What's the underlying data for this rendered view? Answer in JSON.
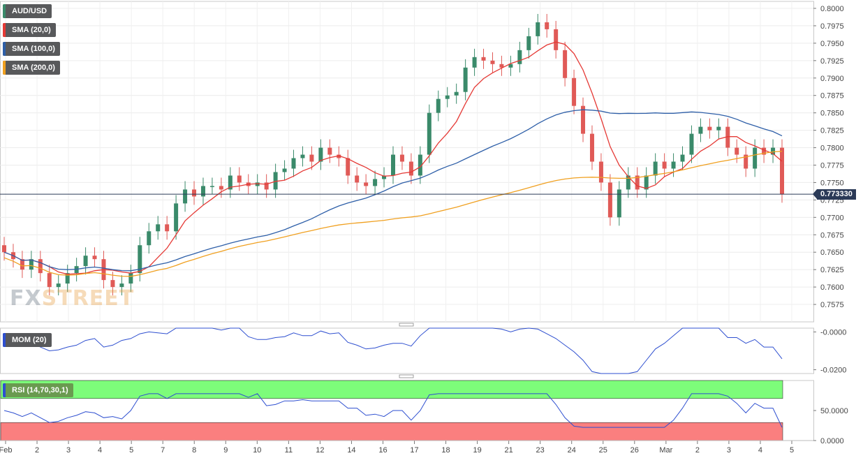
{
  "legend": {
    "symbol": "AUD/USD",
    "sma20": "SMA (20,0)",
    "sma100": "SMA (100,0)",
    "sma200": "SMA (200,0)",
    "mom": "MOM (20)",
    "rsi": "RSI (14,70,30,1)"
  },
  "price_badge": "0.773330",
  "logo": {
    "part1": "FX",
    "part2": "STREET"
  },
  "colors": {
    "up": "#3a8a6a",
    "down": "#e05a57",
    "sma20": "#e53935",
    "sma100": "#2e5fa8",
    "sma200": "#f0a020",
    "mom": "#2e4fd0",
    "rsi_line": "#2e4fd0",
    "rsi_overbought": "#7dfc7a",
    "rsi_oversold": "#fa7f7f"
  },
  "chart_data": [
    {
      "type": "candlestick",
      "title": "AUD/USD",
      "ylim": [
        0.755,
        0.801
      ],
      "y_ticks": [
        "0.8000",
        "0.7975",
        "0.7950",
        "0.7925",
        "0.7900",
        "0.7875",
        "0.7850",
        "0.7825",
        "0.7800",
        "0.7775",
        "0.7750",
        "0.7725",
        "0.7700",
        "0.7675",
        "0.7650",
        "0.7625",
        "0.7600",
        "0.7575"
      ],
      "x_tick_labels": [
        "Feb",
        "2",
        "3",
        "4",
        "5",
        "7",
        "8",
        "9",
        "10",
        "11",
        "12",
        "14",
        "16",
        "17",
        "18",
        "19",
        "21",
        "23",
        "24",
        "25",
        "26",
        "Mar",
        "2",
        "3",
        "4",
        "5"
      ],
      "current_price": 0.77333,
      "close": [
        0.765,
        0.764,
        0.7625,
        0.764,
        0.762,
        0.76,
        0.7605,
        0.762,
        0.763,
        0.7645,
        0.764,
        0.761,
        0.76,
        0.7605,
        0.762,
        0.766,
        0.768,
        0.769,
        0.768,
        0.772,
        0.774,
        0.773,
        0.7745,
        0.7745,
        0.774,
        0.776,
        0.775,
        0.7745,
        0.775,
        0.774,
        0.7765,
        0.777,
        0.7785,
        0.779,
        0.778,
        0.78,
        0.779,
        0.7785,
        0.776,
        0.775,
        0.7745,
        0.7755,
        0.776,
        0.779,
        0.778,
        0.776,
        0.779,
        0.785,
        0.787,
        0.7875,
        0.788,
        0.7915,
        0.793,
        0.7925,
        0.792,
        0.7915,
        0.792,
        0.794,
        0.796,
        0.798,
        0.797,
        0.794,
        0.79,
        0.786,
        0.782,
        0.778,
        0.775,
        0.77,
        0.774,
        0.776,
        0.774,
        0.776,
        0.778,
        0.777,
        0.778,
        0.779,
        0.782,
        0.783,
        0.7825,
        0.783,
        0.78,
        0.779,
        0.777,
        0.78,
        0.779,
        0.78,
        0.7733
      ],
      "series": [
        {
          "name": "SMA (20,0)"
        },
        {
          "name": "SMA (100,0)"
        },
        {
          "name": "SMA (200,0)"
        }
      ]
    },
    {
      "type": "line",
      "title": "MOM (20)",
      "y_ticks": [
        "-0.0000",
        "-0.0200"
      ],
      "ylim": [
        -0.022,
        0.002
      ]
    },
    {
      "type": "line",
      "title": "RSI (14,70,30,1)",
      "y_ticks": [
        "50.0000",
        "0.0000"
      ],
      "overbought": 70,
      "oversold": 30
    }
  ]
}
